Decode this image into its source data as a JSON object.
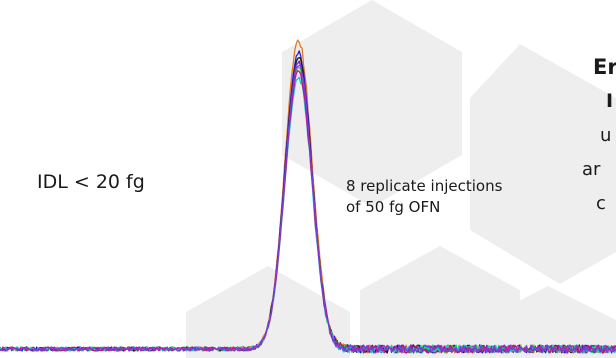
{
  "annotations": {
    "idl": "IDL < 20 fg",
    "replicate_line1": "8 replicate injections",
    "replicate_line2": "of 50 fg OFN",
    "cut_off_lines": [
      "Er",
      "I",
      "u",
      "ar",
      "c"
    ]
  },
  "colors": {
    "hex_background": "#eeeeee",
    "series": [
      "#e07a1c",
      "#1c1ce0",
      "#1a1a1a",
      "#8a1ca8",
      "#2ad04a",
      "#16c8d8",
      "#c0148a",
      "#7a3cd8"
    ]
  },
  "chart_data": {
    "type": "line",
    "title": "",
    "xlabel": "",
    "ylabel": "",
    "axes_visible": false,
    "grid": false,
    "legend": "none",
    "xlim": [
      0,
      100
    ],
    "ylim": [
      0,
      100
    ],
    "peak_center_x": 48.7,
    "peak_width_sigma": 2.2,
    "series": [
      {
        "color": "#e07a1c",
        "peak_height": 100
      },
      {
        "color": "#1c1ce0",
        "peak_height": 96
      },
      {
        "color": "#1a1a1a",
        "peak_height": 94
      },
      {
        "color": "#8a1ca8",
        "peak_height": 93
      },
      {
        "color": "#2ad04a",
        "peak_height": 91
      },
      {
        "color": "#16c8d8",
        "peak_height": 88
      },
      {
        "color": "#c0148a",
        "peak_height": 90
      },
      {
        "color": "#7a3cd8",
        "peak_height": 92
      }
    ]
  }
}
